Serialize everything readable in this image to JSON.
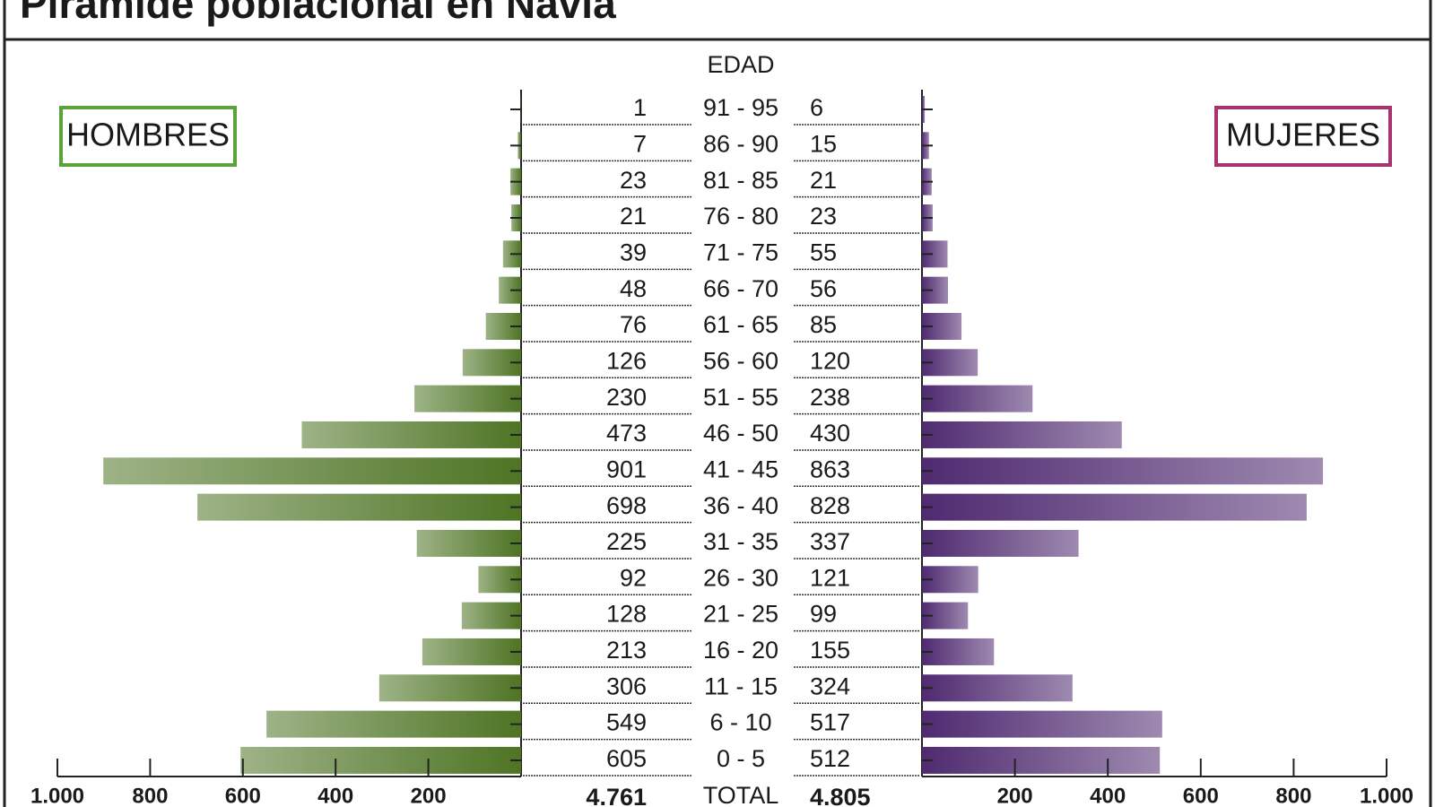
{
  "chart_data": {
    "type": "pyramid",
    "title": "Pirámide poblacional en Navia",
    "center_label": "EDAD",
    "total_name": "TOTAL",
    "categories": [
      "91 - 95",
      "86 - 90",
      "81 - 85",
      "76 - 80",
      "71 - 75",
      "66 - 70",
      "61 - 65",
      "56 - 60",
      "51 - 55",
      "46 - 50",
      "41 - 45",
      "36 - 40",
      "31 - 35",
      "26 - 30",
      "21 - 25",
      "16 - 20",
      "11 - 15",
      "6 - 10",
      "0 - 5"
    ],
    "series": [
      {
        "name": "HOMBRES",
        "color": "#4e7424",
        "legend_color": "#5aa23a",
        "values": [
          1,
          7,
          23,
          21,
          39,
          48,
          76,
          126,
          230,
          473,
          901,
          698,
          225,
          92,
          128,
          213,
          306,
          549,
          605
        ],
        "total": {
          "value": 4761,
          "label": "4.761"
        }
      },
      {
        "name": "MUJERES",
        "color": "#4f2a70",
        "legend_color": "#a8336e",
        "values": [
          6,
          15,
          21,
          23,
          55,
          56,
          85,
          120,
          238,
          430,
          863,
          828,
          337,
          121,
          99,
          155,
          324,
          517,
          512
        ],
        "total": {
          "value": 4805,
          "label": "4.805"
        }
      }
    ],
    "xlim": [
      0,
      1000
    ],
    "xticks": [
      200,
      400,
      600,
      800,
      {
        "value": 1000,
        "label": "1.000"
      }
    ]
  }
}
